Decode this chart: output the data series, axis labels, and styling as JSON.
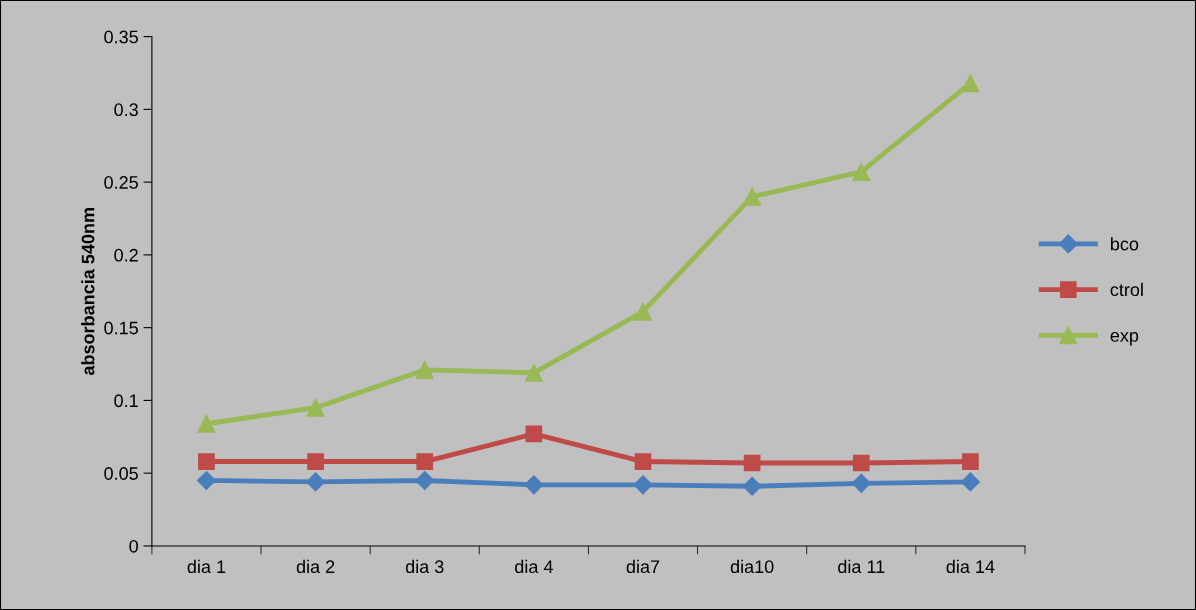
{
  "chart_data": {
    "type": "line",
    "ylabel": "absorbancia 540nm",
    "categories": [
      "dia 1",
      "dia 2",
      "dia 3",
      "dia 4",
      "dia7",
      "dia10",
      "dia 11",
      "dia 14"
    ],
    "series": [
      {
        "name": "bco",
        "color": "#4a7ebb",
        "marker": "diamond",
        "values": [
          0.045,
          0.044,
          0.045,
          0.042,
          0.042,
          0.041,
          0.043,
          0.044
        ]
      },
      {
        "name": "ctrol",
        "color": "#be4b48",
        "marker": "square",
        "values": [
          0.058,
          0.058,
          0.058,
          0.077,
          0.058,
          0.057,
          0.057,
          0.058
        ]
      },
      {
        "name": "exp",
        "color": "#98b954",
        "marker": "triangle",
        "values": [
          0.084,
          0.095,
          0.121,
          0.119,
          0.161,
          0.24,
          0.257,
          0.318
        ]
      }
    ],
    "ylim": [
      0,
      0.35
    ],
    "yticks": [
      {
        "value": 0,
        "label": "0"
      },
      0.05,
      0.1,
      0.15,
      0.2,
      0.25,
      0.3,
      0.35
    ],
    "grid": false,
    "legend": "right",
    "line_style": "solid"
  }
}
